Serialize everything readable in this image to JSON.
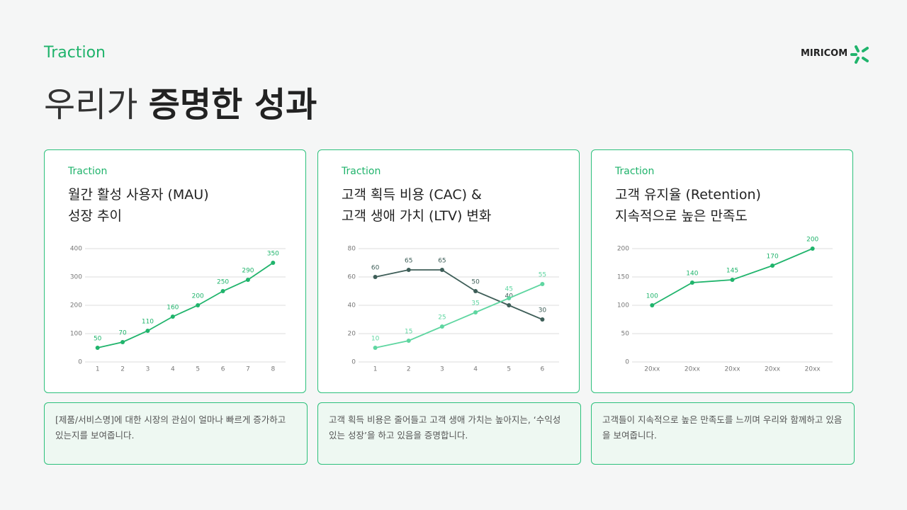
{
  "header": {
    "eyebrow": "Traction",
    "title": {
      "light": "우리가",
      "bold": "증명한 성과"
    }
  },
  "brand": "MIRICOM",
  "chart_data": [
    {
      "type": "line",
      "eyebrow": "Traction",
      "title": [
        "월간 활성 사용자 (MAU)",
        "성장 추이"
      ],
      "categories": [
        "1",
        "2",
        "3",
        "4",
        "5",
        "6",
        "7",
        "8"
      ],
      "values": [
        50,
        70,
        110,
        160,
        200,
        250,
        290,
        350
      ],
      "color": "#20b46c",
      "ylim": [
        0,
        400
      ],
      "yticks": [
        0,
        100,
        200,
        300,
        400
      ],
      "grid": true
    },
    {
      "type": "line",
      "eyebrow": "Traction",
      "title": [
        "고객 획득 비용 (CAC) &",
        "고객 생애 가치 (LTV) 변화"
      ],
      "categories": [
        "1",
        "2",
        "3",
        "4",
        "5",
        "6"
      ],
      "series": [
        {
          "color": "#3e5e58",
          "values": [
            60,
            65,
            65,
            50,
            40,
            30
          ]
        },
        {
          "color": "#5fd6a1",
          "values": [
            10,
            15,
            25,
            35,
            45,
            55
          ]
        }
      ],
      "ylim": [
        0,
        80
      ],
      "yticks": [
        0,
        20,
        40,
        60,
        80
      ],
      "grid": true
    },
    {
      "type": "line",
      "eyebrow": "Traction",
      "title": [
        "고객 유지율 (Retention)",
        "지속적으로 높은 만족도"
      ],
      "categories": [
        "20xx",
        "20xx",
        "20xx",
        "20xx",
        "20xx"
      ],
      "values": [
        100,
        140,
        145,
        170,
        200
      ],
      "color": "#20b46c",
      "ylim": [
        0,
        200
      ],
      "yticks": [
        0,
        50,
        100,
        150,
        200
      ],
      "grid": true
    }
  ],
  "descriptions": [
    "[제품/서비스명]에 대한 시장의 관심이 얼마나 빠르게 증가하고 있는지를 보여줍니다.",
    "고객 획득 비용은 줄어들고 고객 생애 가치는 높아지는, ‘수익성 있는 성장’을 하고 있음을 증명합니다.",
    "고객들이 지속적으로 높은 만족도를 느끼며 우리와 함께하고 있음을 보여줍니다."
  ]
}
